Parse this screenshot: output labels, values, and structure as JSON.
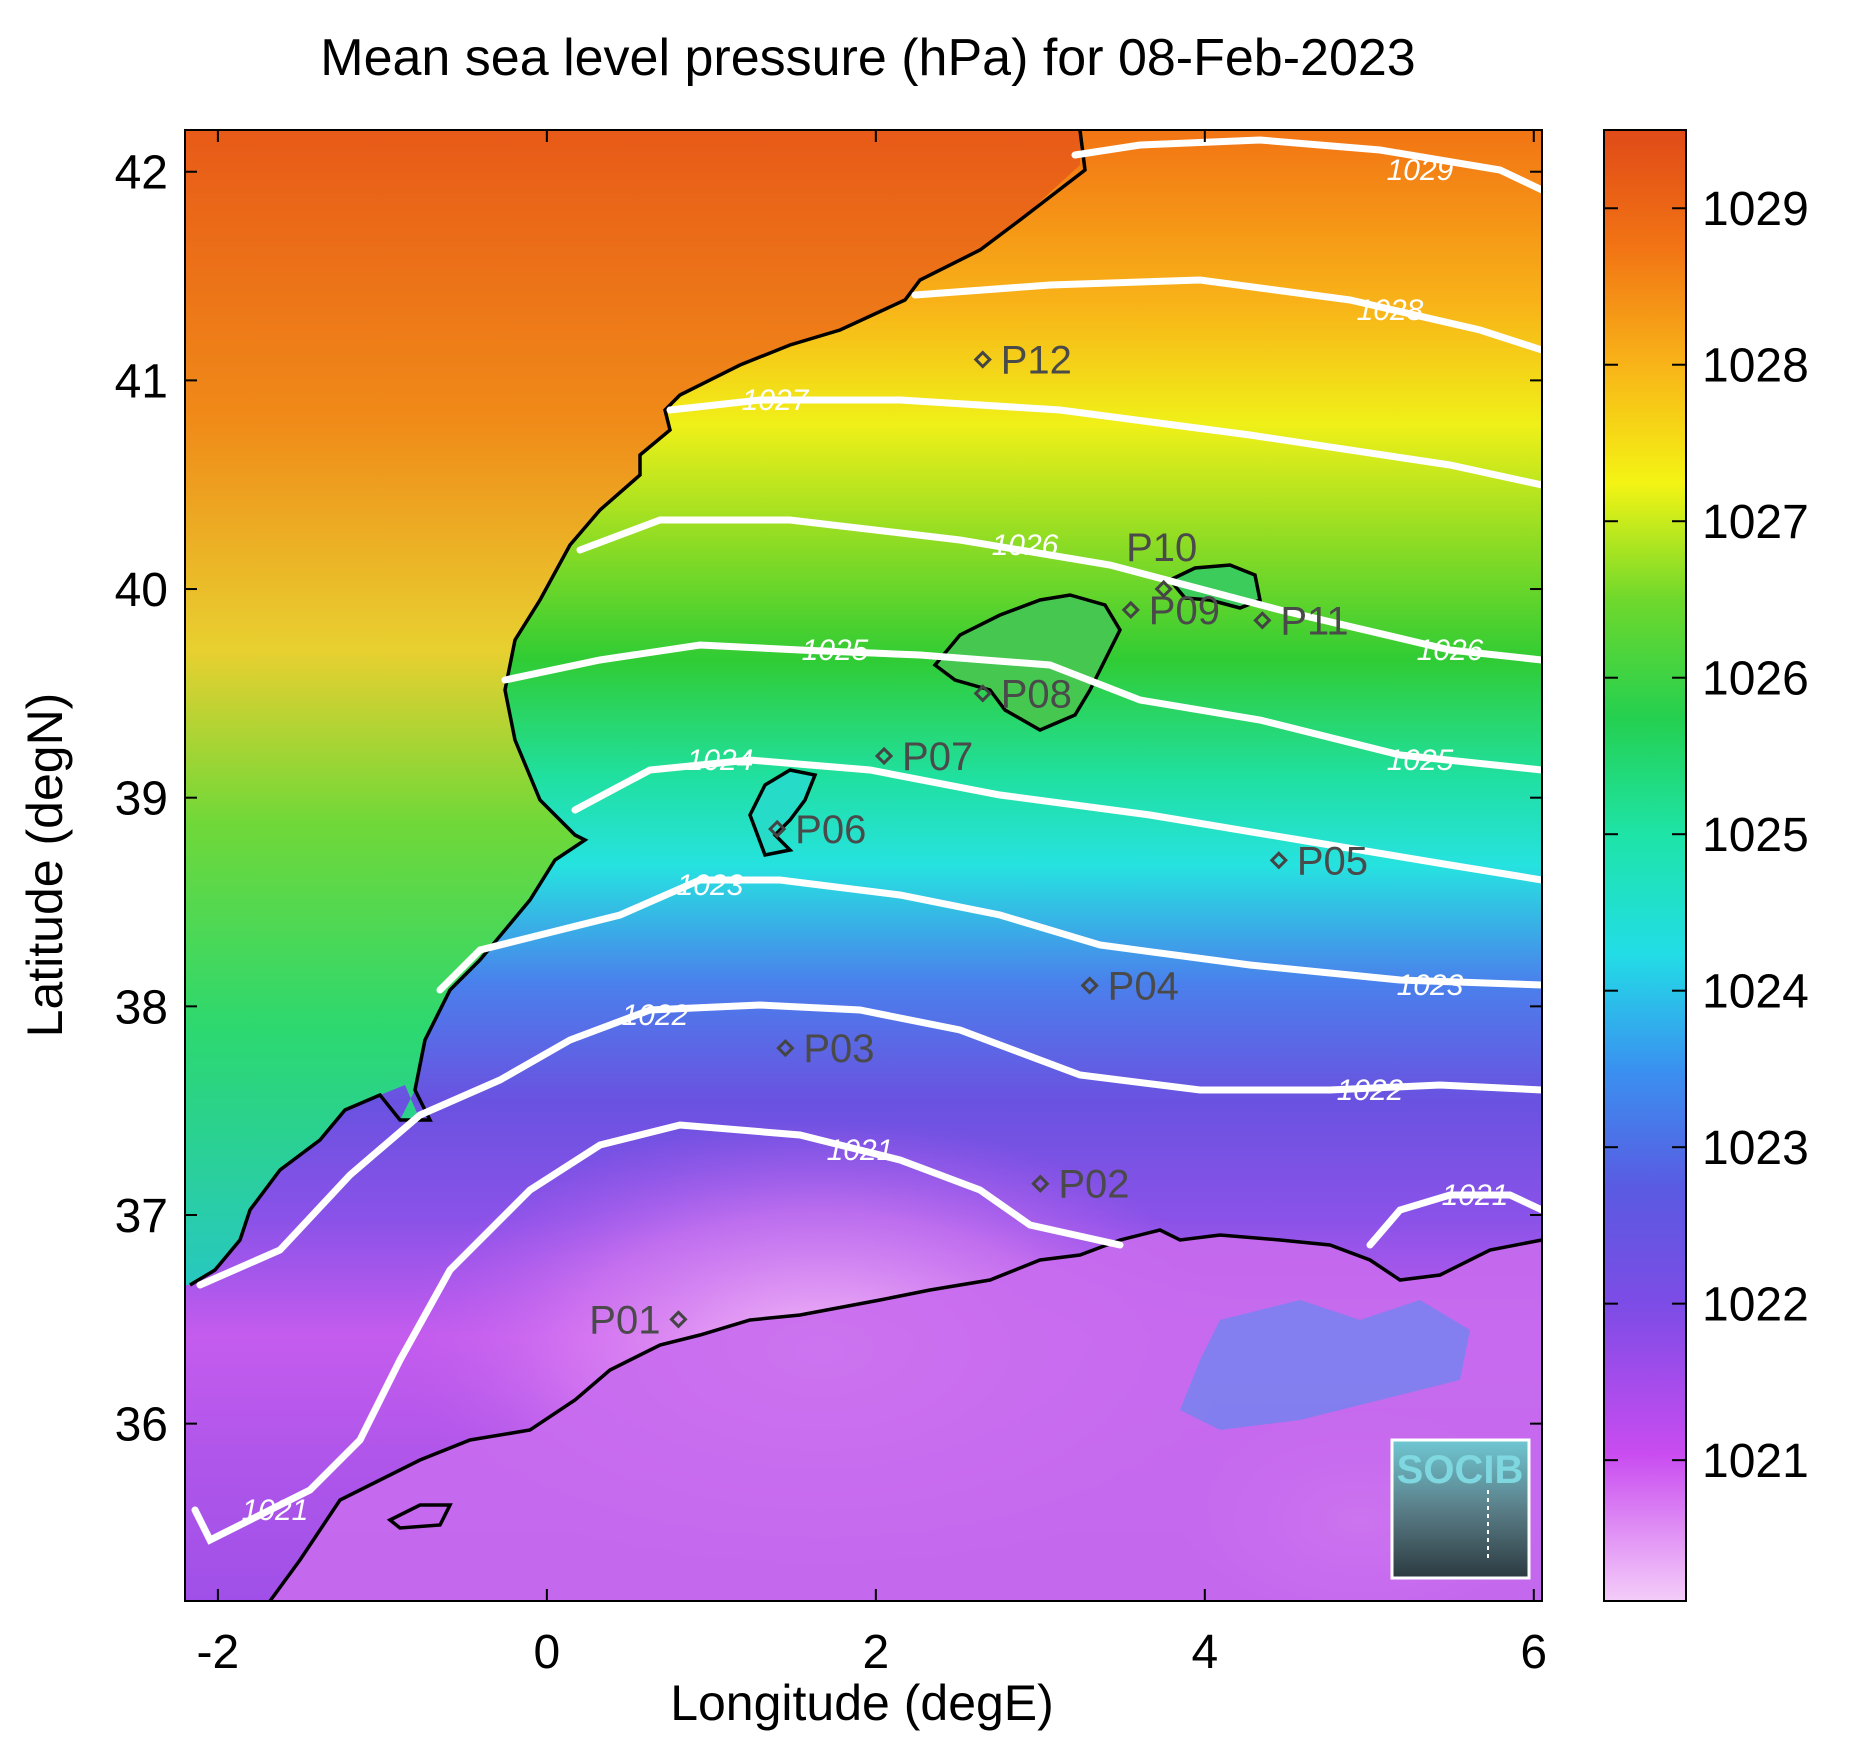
{
  "title": "Mean sea level pressure (hPa) for 08-Feb-2023",
  "xlabel": "Longitude (degE)",
  "ylabel": "Latitude (degN)",
  "x_ticks": [
    "-2",
    "0",
    "2",
    "4",
    "6"
  ],
  "y_ticks": [
    "42",
    "41",
    "40",
    "39",
    "38",
    "37",
    "36"
  ],
  "colorbar": {
    "ticks": [
      "1029",
      "1028",
      "1027",
      "1026",
      "1025",
      "1024",
      "1023",
      "1022",
      "1021"
    ],
    "range": [
      1020.1,
      1029.5
    ],
    "colors": [
      "#f2c8f8",
      "#cf5cef",
      "#8a4fe8",
      "#5a5ae0",
      "#3f8ef0",
      "#2ae0e8",
      "#1ee0a0",
      "#2ecc3c",
      "#8ee028",
      "#f4f214",
      "#f8b414",
      "#f07014",
      "#e04c18"
    ]
  },
  "chart_data": {
    "type": "heatmap",
    "title": "Mean sea level pressure (hPa) for 08-Feb-2023",
    "xlabel": "Longitude (degE)",
    "ylabel": "Latitude (degN)",
    "xlim": [
      -2.2,
      6.05
    ],
    "ylim": [
      35.15,
      42.2
    ],
    "colorbar_range": [
      1020.1,
      1029.5
    ],
    "contours": [
      {
        "level": "1029",
        "label_lon": 4.35,
        "label_lat": 42.0
      },
      {
        "level": "1028",
        "label_lon": 4.2,
        "label_lat": 41.15
      },
      {
        "level": "1027",
        "label_lon": 1.4,
        "label_lat": 40.85
      },
      {
        "level": "1026",
        "label_lon": 2.9,
        "label_lat": 40.2
      },
      {
        "level": "1026",
        "label_lon": 5.75,
        "label_lat": 39.65
      },
      {
        "level": "1025",
        "label_lon": 1.7,
        "label_lat": 39.7
      },
      {
        "level": "1025",
        "label_lon": 5.55,
        "label_lat": 39.15
      },
      {
        "level": "1024",
        "label_lon": 1.1,
        "label_lat": 39.1
      },
      {
        "level": "1023",
        "label_lon": 1.0,
        "label_lat": 38.55
      },
      {
        "level": "1023",
        "label_lon": 5.5,
        "label_lat": 38.05
      },
      {
        "level": "1022",
        "label_lon": 0.65,
        "label_lat": 37.95
      },
      {
        "level": "1022",
        "label_lon": 5.2,
        "label_lat": 37.55
      },
      {
        "level": "1021",
        "label_lon": 2.95,
        "label_lat": 37.35
      },
      {
        "level": "1021",
        "label_lon": 5.6,
        "label_lat": 37.1
      },
      {
        "level": "1021",
        "label_lon": -1.8,
        "label_lat": 35.55
      }
    ],
    "points": [
      {
        "name": "P01",
        "lon": 0.8,
        "lat": 36.5
      },
      {
        "name": "P02",
        "lon": 3.0,
        "lat": 37.15
      },
      {
        "name": "P03",
        "lon": 1.45,
        "lat": 37.8
      },
      {
        "name": "P04",
        "lon": 3.3,
        "lat": 38.1
      },
      {
        "name": "P05",
        "lon": 4.45,
        "lat": 38.7
      },
      {
        "name": "P06",
        "lon": 1.4,
        "lat": 38.85
      },
      {
        "name": "P07",
        "lon": 2.05,
        "lat": 39.2
      },
      {
        "name": "P08",
        "lon": 2.65,
        "lat": 39.5
      },
      {
        "name": "P09",
        "lon": 3.55,
        "lat": 39.9
      },
      {
        "name": "P10",
        "lon": 3.75,
        "lat": 40.0
      },
      {
        "name": "P11",
        "lon": 4.35,
        "lat": 39.85
      },
      {
        "name": "P12",
        "lon": 2.65,
        "lat": 41.1
      }
    ]
  },
  "logo": {
    "text": "SOCIB"
  }
}
